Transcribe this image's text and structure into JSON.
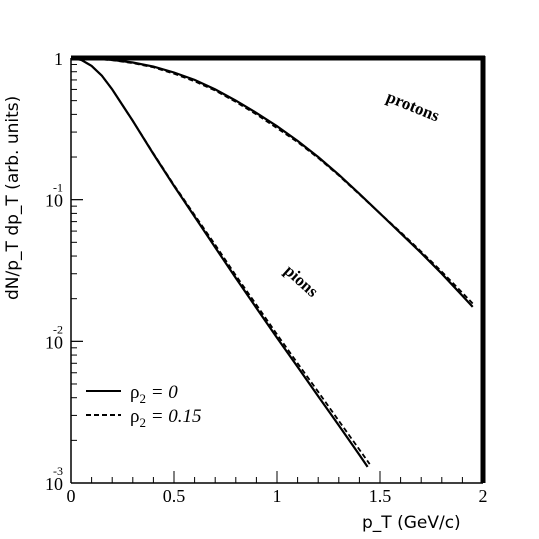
{
  "chart_data": {
    "type": "line",
    "title": "",
    "xlabel": "p_T (GeV/c)",
    "ylabel": "dN/p_T dp_T (arb. units)",
    "xlim": [
      0,
      2
    ],
    "ylim": [
      0.001,
      1
    ],
    "yscale": "log",
    "x_ticks": [
      {
        "value": 0,
        "label": "0"
      },
      {
        "value": 0.5,
        "label": "0.5"
      },
      {
        "value": 1,
        "label": "1"
      },
      {
        "value": 1.5,
        "label": "1.5"
      },
      {
        "value": 2,
        "label": "2"
      }
    ],
    "y_ticks": [
      {
        "value": 1,
        "base": "1",
        "exp": ""
      },
      {
        "value": 0.1,
        "base": "10",
        "exp": "-1"
      },
      {
        "value": 0.01,
        "base": "10",
        "exp": "-2"
      },
      {
        "value": 0.001,
        "base": "10",
        "exp": "-3"
      }
    ],
    "grid": false,
    "legend": {
      "position": "bottom-left",
      "entries": [
        {
          "symbol": "ρ",
          "sub": "2",
          "text": " = 0",
          "style": "solid"
        },
        {
          "symbol": "ρ",
          "sub": "2",
          "text": " = 0.15",
          "style": "dashed"
        }
      ]
    },
    "annotations": [
      {
        "text": "protons",
        "x": 1.65,
        "y": 0.42,
        "angle": 22
      },
      {
        "text": "pions",
        "x": 1.1,
        "y": 0.025,
        "angle": 42
      }
    ],
    "series": [
      {
        "group": "protons",
        "legend_index": 0,
        "style": "solid",
        "x": [
          0,
          0.1,
          0.2,
          0.3,
          0.4,
          0.5,
          0.6,
          0.7,
          0.8,
          0.9,
          1.0,
          1.1,
          1.2,
          1.3,
          1.4,
          1.5,
          1.6,
          1.7,
          1.8,
          1.9,
          1.95
        ],
        "y": [
          1.0,
          0.99,
          0.97,
          0.93,
          0.87,
          0.79,
          0.7,
          0.6,
          0.5,
          0.41,
          0.33,
          0.26,
          0.2,
          0.15,
          0.11,
          0.08,
          0.058,
          0.042,
          0.03,
          0.021,
          0.0175
        ]
      },
      {
        "group": "protons",
        "legend_index": 1,
        "style": "dashed",
        "x": [
          0,
          0.1,
          0.2,
          0.3,
          0.4,
          0.5,
          0.6,
          0.7,
          0.8,
          0.9,
          1.0,
          1.1,
          1.2,
          1.3,
          1.4,
          1.5,
          1.6,
          1.7,
          1.8,
          1.9,
          1.95
        ],
        "y": [
          1.0,
          0.99,
          0.965,
          0.92,
          0.86,
          0.775,
          0.685,
          0.59,
          0.49,
          0.4,
          0.32,
          0.255,
          0.197,
          0.148,
          0.109,
          0.08,
          0.059,
          0.043,
          0.031,
          0.022,
          0.0185
        ]
      },
      {
        "group": "pions",
        "legend_index": 0,
        "style": "solid",
        "x": [
          0,
          0.05,
          0.1,
          0.15,
          0.2,
          0.3,
          0.4,
          0.5,
          0.6,
          0.7,
          0.8,
          0.9,
          1.0,
          1.1,
          1.2,
          1.3,
          1.4,
          1.44
        ],
        "y": [
          1.0,
          0.97,
          0.88,
          0.75,
          0.6,
          0.36,
          0.21,
          0.125,
          0.076,
          0.046,
          0.028,
          0.0172,
          0.0106,
          0.0066,
          0.0041,
          0.00255,
          0.00158,
          0.0013
        ]
      },
      {
        "group": "pions",
        "legend_index": 1,
        "style": "dashed",
        "x": [
          0,
          0.05,
          0.1,
          0.15,
          0.2,
          0.3,
          0.4,
          0.5,
          0.6,
          0.7,
          0.8,
          0.9,
          1.0,
          1.1,
          1.2,
          1.3,
          1.4,
          1.45
        ],
        "y": [
          1.0,
          0.97,
          0.88,
          0.75,
          0.6,
          0.36,
          0.212,
          0.127,
          0.078,
          0.048,
          0.0292,
          0.0181,
          0.0112,
          0.007,
          0.0044,
          0.00275,
          0.00172,
          0.00136
        ]
      }
    ]
  }
}
